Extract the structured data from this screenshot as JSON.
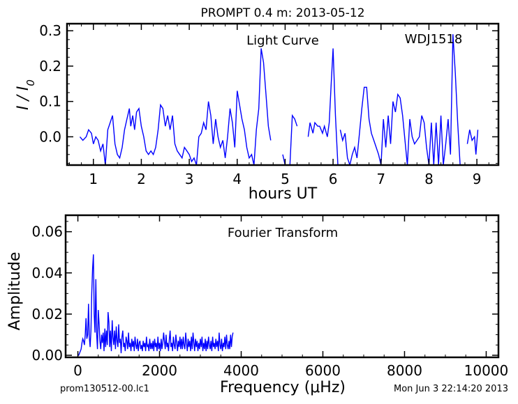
{
  "title": "PROMPT 0.4 m:  2013-05-12",
  "footer_left": "prom130512-00.lc1",
  "footer_right": "Mon Jun  3 22:14:20 2013",
  "chart_data": [
    {
      "type": "line",
      "annotation_center": "Light Curve",
      "annotation_right": "WDJ1518",
      "xlabel": "hours UT",
      "ylabel": "I / I0",
      "xlim": [
        0.45,
        9.45
      ],
      "ylim": [
        -0.08,
        0.32
      ],
      "xticks": [
        1,
        2,
        3,
        4,
        5,
        6,
        7,
        8,
        9
      ],
      "yticks": [
        0.0,
        0.1,
        0.2,
        0.3
      ],
      "ytick_labels": [
        "0.0",
        "0.1",
        "0.2",
        "0.3"
      ],
      "color": "#0000ff",
      "segments": [
        [
          [
            0.72,
            0.0
          ],
          [
            0.78,
            -0.01
          ],
          [
            0.85,
            0.0
          ],
          [
            0.9,
            0.02
          ],
          [
            0.96,
            0.01
          ],
          [
            1.0,
            -0.02
          ],
          [
            1.05,
            0.0
          ],
          [
            1.1,
            -0.01
          ],
          [
            1.15,
            -0.04
          ],
          [
            1.2,
            -0.02
          ],
          [
            1.25,
            -0.08
          ],
          [
            1.3,
            0.02
          ],
          [
            1.35,
            0.04
          ],
          [
            1.4,
            0.06
          ],
          [
            1.45,
            -0.02
          ],
          [
            1.5,
            -0.05
          ],
          [
            1.55,
            -0.06
          ],
          [
            1.6,
            -0.03
          ],
          [
            1.65,
            0.02
          ],
          [
            1.7,
            0.05
          ],
          [
            1.75,
            0.08
          ],
          [
            1.78,
            0.03
          ],
          [
            1.82,
            0.06
          ],
          [
            1.86,
            0.02
          ],
          [
            1.9,
            0.07
          ],
          [
            1.95,
            0.08
          ],
          [
            2.0,
            0.03
          ],
          [
            2.05,
            0.0
          ],
          [
            2.1,
            -0.04
          ],
          [
            2.15,
            -0.05
          ],
          [
            2.2,
            -0.04
          ],
          [
            2.25,
            -0.05
          ],
          [
            2.3,
            -0.03
          ],
          [
            2.35,
            0.02
          ],
          [
            2.4,
            0.09
          ],
          [
            2.45,
            0.08
          ],
          [
            2.5,
            0.03
          ],
          [
            2.55,
            0.06
          ],
          [
            2.6,
            0.02
          ],
          [
            2.65,
            0.06
          ],
          [
            2.7,
            -0.02
          ],
          [
            2.75,
            -0.04
          ],
          [
            2.8,
            -0.05
          ],
          [
            2.85,
            -0.06
          ],
          [
            2.9,
            -0.03
          ],
          [
            2.95,
            -0.04
          ],
          [
            3.0,
            -0.05
          ],
          [
            3.05,
            -0.07
          ],
          [
            3.1,
            -0.06
          ],
          [
            3.15,
            -0.08
          ],
          [
            3.2,
            0.0
          ],
          [
            3.25,
            0.01
          ],
          [
            3.3,
            0.04
          ],
          [
            3.35,
            0.02
          ],
          [
            3.4,
            0.1
          ],
          [
            3.45,
            0.06
          ],
          [
            3.5,
            -0.02
          ],
          [
            3.55,
            0.05
          ],
          [
            3.6,
            0.0
          ],
          [
            3.65,
            -0.03
          ],
          [
            3.7,
            -0.01
          ],
          [
            3.75,
            -0.06
          ],
          [
            3.8,
            0.0
          ],
          [
            3.85,
            0.08
          ],
          [
            3.9,
            0.04
          ],
          [
            3.95,
            -0.03
          ],
          [
            4.0,
            0.13
          ],
          [
            4.05,
            0.09
          ],
          [
            4.1,
            0.05
          ],
          [
            4.15,
            0.02
          ],
          [
            4.2,
            -0.03
          ],
          [
            4.25,
            -0.06
          ],
          [
            4.3,
            -0.05
          ],
          [
            4.35,
            -0.08
          ],
          [
            4.4,
            0.02
          ],
          [
            4.45,
            0.08
          ],
          [
            4.5,
            0.25
          ],
          [
            4.55,
            0.21
          ],
          [
            4.6,
            0.12
          ],
          [
            4.65,
            0.03
          ],
          [
            4.7,
            -0.01
          ]
        ],
        [
          [
            4.95,
            -0.05
          ],
          [
            5.0,
            -0.08
          ]
        ],
        [
          [
            5.1,
            -0.08
          ],
          [
            5.15,
            0.06
          ],
          [
            5.2,
            0.05
          ],
          [
            5.25,
            0.03
          ]
        ],
        [
          [
            5.48,
            0.0
          ],
          [
            5.52,
            0.04
          ],
          [
            5.58,
            0.01
          ],
          [
            5.62,
            0.04
          ],
          [
            5.68,
            0.03
          ],
          [
            5.72,
            0.03
          ],
          [
            5.78,
            0.01
          ],
          [
            5.82,
            0.03
          ],
          [
            5.88,
            0.0
          ],
          [
            5.92,
            0.04
          ],
          [
            5.96,
            0.15
          ],
          [
            6.0,
            0.25
          ],
          [
            6.05,
            0.06
          ],
          [
            6.1,
            -0.08
          ]
        ],
        [
          [
            6.15,
            0.02
          ],
          [
            6.2,
            -0.01
          ],
          [
            6.25,
            0.01
          ],
          [
            6.3,
            -0.06
          ],
          [
            6.35,
            -0.08
          ],
          [
            6.4,
            -0.05
          ],
          [
            6.45,
            -0.03
          ],
          [
            6.5,
            -0.06
          ],
          [
            6.55,
            0.01
          ],
          [
            6.6,
            0.08
          ],
          [
            6.65,
            0.14
          ],
          [
            6.7,
            0.14
          ],
          [
            6.75,
            0.05
          ],
          [
            6.8,
            0.01
          ],
          [
            6.85,
            -0.01
          ],
          [
            6.9,
            -0.03
          ],
          [
            6.95,
            -0.05
          ],
          [
            7.0,
            -0.08
          ],
          [
            7.05,
            0.05
          ],
          [
            7.1,
            -0.03
          ],
          [
            7.15,
            0.06
          ],
          [
            7.2,
            -0.02
          ],
          [
            7.25,
            0.1
          ],
          [
            7.3,
            0.07
          ],
          [
            7.35,
            0.12
          ],
          [
            7.4,
            0.11
          ],
          [
            7.45,
            0.06
          ],
          [
            7.5,
            -0.01
          ],
          [
            7.55,
            -0.08
          ],
          [
            7.6,
            0.05
          ],
          [
            7.65,
            0.0
          ],
          [
            7.7,
            -0.02
          ],
          [
            7.75,
            -0.01
          ],
          [
            7.8,
            0.0
          ],
          [
            7.85,
            0.06
          ],
          [
            7.9,
            0.04
          ],
          [
            7.95,
            -0.03
          ],
          [
            8.0,
            -0.08
          ],
          [
            8.05,
            0.04
          ],
          [
            8.1,
            -0.08
          ],
          [
            8.15,
            0.04
          ],
          [
            8.2,
            -0.08
          ],
          [
            8.25,
            0.06
          ],
          [
            8.3,
            -0.08
          ],
          [
            8.35,
            -0.02
          ],
          [
            8.4,
            0.05
          ],
          [
            8.45,
            -0.05
          ],
          [
            8.5,
            0.29
          ],
          [
            8.55,
            0.18
          ],
          [
            8.6,
            0.04
          ],
          [
            8.65,
            -0.08
          ]
        ],
        [
          [
            8.8,
            -0.02
          ],
          [
            8.85,
            0.02
          ],
          [
            8.9,
            -0.01
          ],
          [
            8.95,
            0.0
          ],
          [
            8.98,
            -0.05
          ],
          [
            9.02,
            0.02
          ]
        ]
      ]
    },
    {
      "type": "line",
      "annotation_center": "Fourier Transform",
      "xlabel": "Frequency (μHz)",
      "ylabel": "Amplitude",
      "xlim": [
        -300,
        10300
      ],
      "ylim": [
        -0.001,
        0.068
      ],
      "xticks": [
        0,
        2000,
        4000,
        6000,
        8000,
        10000
      ],
      "xtick_labels": [
        "0",
        "2000",
        "4000",
        "6000",
        "8000",
        "10000"
      ],
      "yticks": [
        0.0,
        0.02,
        0.04,
        0.06
      ],
      "ytick_labels": [
        "0.00",
        "0.02",
        "0.04",
        "0.06"
      ],
      "color": "#0000ff",
      "frequency_step": 20,
      "frequency_max": 4000,
      "amplitude": [
        0.0,
        0.0,
        0.001,
        0.002,
        0.003,
        0.006,
        0.008,
        0.007,
        0.005,
        0.01,
        0.018,
        0.008,
        0.01,
        0.025,
        0.009,
        0.004,
        0.012,
        0.03,
        0.042,
        0.049,
        0.02,
        0.011,
        0.037,
        0.01,
        0.003,
        0.022,
        0.015,
        0.007,
        0.003,
        0.01,
        0.006,
        0.011,
        0.002,
        0.013,
        0.004,
        0.012,
        0.005,
        0.021,
        0.016,
        0.004,
        0.012,
        0.002,
        0.017,
        0.009,
        0.005,
        0.012,
        0.003,
        0.014,
        0.007,
        0.004,
        0.015,
        0.006,
        0.008,
        0.001,
        0.009,
        0.012,
        0.004,
        0.006,
        0.002,
        0.009,
        0.007,
        0.003,
        0.011,
        0.004,
        0.006,
        0.002,
        0.008,
        0.004,
        0.007,
        0.002,
        0.009,
        0.005,
        0.003,
        0.008,
        0.002,
        0.006,
        0.007,
        0.003,
        0.005,
        0.002,
        0.007,
        0.004,
        0.006,
        0.002,
        0.009,
        0.004,
        0.005,
        0.002,
        0.008,
        0.003,
        0.006,
        0.003,
        0.007,
        0.002,
        0.008,
        0.004,
        0.006,
        0.002,
        0.009,
        0.003,
        0.006,
        0.002,
        0.008,
        0.003,
        0.006,
        0.011,
        0.007,
        0.003,
        0.01,
        0.004,
        0.006,
        0.002,
        0.008,
        0.012,
        0.004,
        0.006,
        0.002,
        0.009,
        0.005,
        0.003,
        0.01,
        0.006,
        0.002,
        0.007,
        0.004,
        0.009,
        0.003,
        0.008,
        0.003,
        0.009,
        0.005,
        0.003,
        0.011,
        0.006,
        0.002,
        0.008,
        0.004,
        0.007,
        0.002,
        0.009,
        0.003,
        0.011,
        0.006,
        0.002,
        0.008,
        0.004,
        0.007,
        0.002,
        0.006,
        0.003,
        0.008,
        0.004,
        0.009,
        0.002,
        0.006,
        0.003,
        0.008,
        0.002,
        0.007,
        0.003,
        0.009,
        0.005,
        0.003,
        0.007,
        0.002,
        0.009,
        0.004,
        0.006,
        0.003,
        0.008,
        0.004,
        0.007,
        0.002,
        0.011,
        0.005,
        0.003,
        0.008,
        0.002,
        0.006,
        0.004,
        0.009,
        0.003,
        0.01,
        0.005,
        0.003,
        0.007,
        0.003,
        0.01,
        0.004,
        0.009,
        0.011
      ]
    }
  ]
}
